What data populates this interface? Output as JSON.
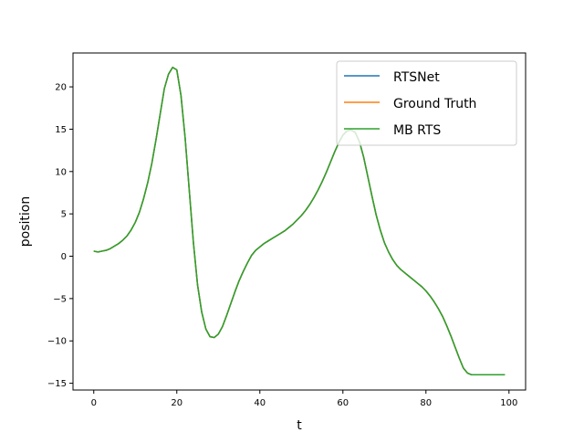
{
  "chart_data": {
    "type": "line",
    "title": "",
    "xlabel": "t",
    "ylabel": "position",
    "xlim": [
      -5,
      104
    ],
    "ylim": [
      -15.8,
      24
    ],
    "xticks": [
      0,
      20,
      40,
      60,
      80,
      100
    ],
    "yticks": [
      -15,
      -10,
      -5,
      0,
      5,
      10,
      15,
      20
    ],
    "legend_position": "upper right",
    "grid": false,
    "x": [
      0,
      1,
      2,
      3,
      4,
      5,
      6,
      7,
      8,
      9,
      10,
      11,
      12,
      13,
      14,
      15,
      16,
      17,
      18,
      19,
      20,
      21,
      22,
      23,
      24,
      25,
      26,
      27,
      28,
      29,
      30,
      31,
      32,
      33,
      34,
      35,
      36,
      37,
      38,
      39,
      40,
      41,
      42,
      43,
      44,
      45,
      46,
      47,
      48,
      49,
      50,
      51,
      52,
      53,
      54,
      55,
      56,
      57,
      58,
      59,
      60,
      61,
      62,
      63,
      64,
      65,
      66,
      67,
      68,
      69,
      70,
      71,
      72,
      73,
      74,
      75,
      76,
      77,
      78,
      79,
      80,
      81,
      82,
      83,
      84,
      85,
      86,
      87,
      88,
      89,
      90,
      91,
      92,
      93,
      94,
      95,
      96,
      97,
      98,
      99
    ],
    "series": [
      {
        "name": "RTSNet",
        "color": "#1f77b4",
        "values": [
          0.6,
          0.5,
          0.6,
          0.7,
          0.9,
          1.2,
          1.5,
          1.9,
          2.4,
          3.1,
          4.0,
          5.2,
          6.8,
          8.7,
          11.0,
          13.8,
          16.8,
          19.8,
          21.5,
          22.3,
          22.0,
          19.0,
          14.0,
          7.8,
          1.6,
          -3.4,
          -6.6,
          -8.6,
          -9.5,
          -9.6,
          -9.2,
          -8.3,
          -7.0,
          -5.6,
          -4.2,
          -2.9,
          -1.8,
          -0.8,
          0.1,
          0.7,
          1.1,
          1.5,
          1.8,
          2.1,
          2.4,
          2.7,
          3.0,
          3.4,
          3.8,
          4.3,
          4.8,
          5.4,
          6.1,
          6.9,
          7.8,
          8.8,
          9.9,
          11.1,
          12.3,
          13.4,
          14.3,
          14.8,
          14.9,
          14.6,
          13.5,
          11.7,
          9.4,
          7.1,
          4.9,
          3.1,
          1.6,
          0.5,
          -0.4,
          -1.1,
          -1.6,
          -2.0,
          -2.4,
          -2.8,
          -3.2,
          -3.6,
          -4.1,
          -4.7,
          -5.4,
          -6.2,
          -7.1,
          -8.2,
          -9.4,
          -10.7,
          -12.0,
          -13.2,
          -13.8,
          -14.0,
          -14.0,
          -14.0,
          -14.0,
          -14.0,
          -14.0,
          -14.0,
          -14.0,
          -14.0
        ]
      },
      {
        "name": "Ground Truth",
        "color": "#ff7f0e",
        "values": [
          0.6,
          0.5,
          0.6,
          0.7,
          0.9,
          1.2,
          1.5,
          1.9,
          2.4,
          3.1,
          4.0,
          5.2,
          6.8,
          8.7,
          11.0,
          13.8,
          16.8,
          19.8,
          21.5,
          22.3,
          22.0,
          19.0,
          14.0,
          7.8,
          1.6,
          -3.4,
          -6.6,
          -8.6,
          -9.5,
          -9.6,
          -9.2,
          -8.3,
          -7.0,
          -5.6,
          -4.2,
          -2.9,
          -1.8,
          -0.8,
          0.1,
          0.7,
          1.1,
          1.5,
          1.8,
          2.1,
          2.4,
          2.7,
          3.0,
          3.4,
          3.8,
          4.3,
          4.8,
          5.4,
          6.1,
          6.9,
          7.8,
          8.8,
          9.9,
          11.1,
          12.3,
          13.4,
          14.3,
          14.8,
          14.9,
          14.6,
          13.5,
          11.7,
          9.4,
          7.1,
          4.9,
          3.1,
          1.6,
          0.5,
          -0.4,
          -1.1,
          -1.6,
          -2.0,
          -2.4,
          -2.8,
          -3.2,
          -3.6,
          -4.1,
          -4.7,
          -5.4,
          -6.2,
          -7.1,
          -8.2,
          -9.4,
          -10.7,
          -12.0,
          -13.2,
          -13.8,
          -14.0,
          -14.0,
          -14.0,
          -14.0,
          -14.0,
          -14.0,
          -14.0,
          -14.0,
          -14.0
        ]
      },
      {
        "name": "MB RTS",
        "color": "#2ca02c",
        "values": [
          0.6,
          0.5,
          0.6,
          0.7,
          0.9,
          1.2,
          1.5,
          1.9,
          2.4,
          3.1,
          4.0,
          5.2,
          6.8,
          8.7,
          11.0,
          13.8,
          16.8,
          19.8,
          21.5,
          22.3,
          22.0,
          19.0,
          14.0,
          7.8,
          1.6,
          -3.4,
          -6.6,
          -8.6,
          -9.5,
          -9.6,
          -9.2,
          -8.3,
          -7.0,
          -5.6,
          -4.2,
          -2.9,
          -1.8,
          -0.8,
          0.1,
          0.7,
          1.1,
          1.5,
          1.8,
          2.1,
          2.4,
          2.7,
          3.0,
          3.4,
          3.8,
          4.3,
          4.8,
          5.4,
          6.1,
          6.9,
          7.8,
          8.8,
          9.9,
          11.1,
          12.3,
          13.4,
          14.3,
          14.8,
          14.9,
          14.6,
          13.5,
          11.7,
          9.4,
          7.1,
          4.9,
          3.1,
          1.6,
          0.5,
          -0.4,
          -1.1,
          -1.6,
          -2.0,
          -2.4,
          -2.8,
          -3.2,
          -3.6,
          -4.1,
          -4.7,
          -5.4,
          -6.2,
          -7.1,
          -8.2,
          -9.4,
          -10.7,
          -12.0,
          -13.2,
          -13.8,
          -14.0,
          -14.0,
          -14.0,
          -14.0,
          -14.0,
          -14.0,
          -14.0,
          -14.0,
          -14.0
        ]
      }
    ]
  }
}
